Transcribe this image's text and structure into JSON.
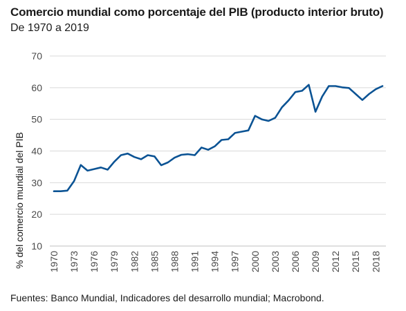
{
  "header": {
    "title": "Comercio mundial como porcentaje del PIB (producto interior bruto)",
    "subtitle": "De 1970 a 2019"
  },
  "footer": {
    "source": "Fuentes: Banco Mundial, Indicadores del desarrollo mundial; Macrobond."
  },
  "colors": {
    "line": "#0b5394",
    "grid": "#d9d9d9",
    "tick_text": "#4a4a4a"
  },
  "chart_data": {
    "type": "line",
    "title": "Comercio mundial como porcentaje del PIB (producto interior bruto)",
    "subtitle": "De 1970 a 2019",
    "xlabel": "",
    "ylabel": "% del comercio mundial del PIB",
    "xlim": [
      1970,
      2019
    ],
    "ylim": [
      10,
      70
    ],
    "y_ticks": [
      10,
      20,
      30,
      40,
      50,
      60,
      70
    ],
    "x_ticks": [
      "1970",
      "1973",
      "1976",
      "1979",
      "1982",
      "1985",
      "1988",
      "1991",
      "1994",
      "1997",
      "2000",
      "2003",
      "2006",
      "2009",
      "2012",
      "2015",
      "2018"
    ],
    "grid": "horizontal",
    "legend": "none",
    "series": [
      {
        "x": [
          1970,
          1971,
          1972,
          1973,
          1974,
          1975,
          1976,
          1977,
          1978,
          1979,
          1980,
          1981,
          1982,
          1983,
          1984,
          1985,
          1986,
          1987,
          1988,
          1989,
          1990,
          1991,
          1992,
          1993,
          1994,
          1995,
          1996,
          1997,
          1998,
          1999,
          2000,
          2001,
          2002,
          2003,
          2004,
          2005,
          2006,
          2007,
          2008,
          2009,
          2010,
          2011,
          2012,
          2013,
          2014,
          2015,
          2016,
          2017,
          2018,
          2019
        ],
        "values": [
          27.3,
          27.3,
          27.5,
          30.5,
          35.6,
          33.8,
          34.3,
          34.8,
          34.1,
          36.6,
          38.7,
          39.2,
          38.1,
          37.4,
          38.7,
          38.3,
          35.5,
          36.4,
          37.9,
          38.8,
          39.0,
          38.7,
          41.1,
          40.4,
          41.5,
          43.5,
          43.7,
          45.7,
          46.1,
          46.5,
          51.1,
          50.0,
          49.5,
          50.5,
          53.8,
          56.0,
          58.6,
          59.0,
          60.9,
          52.4,
          57.2,
          60.5,
          60.5,
          60.1,
          59.9,
          58.0,
          56.1,
          58.0,
          59.5,
          60.5
        ]
      }
    ]
  }
}
